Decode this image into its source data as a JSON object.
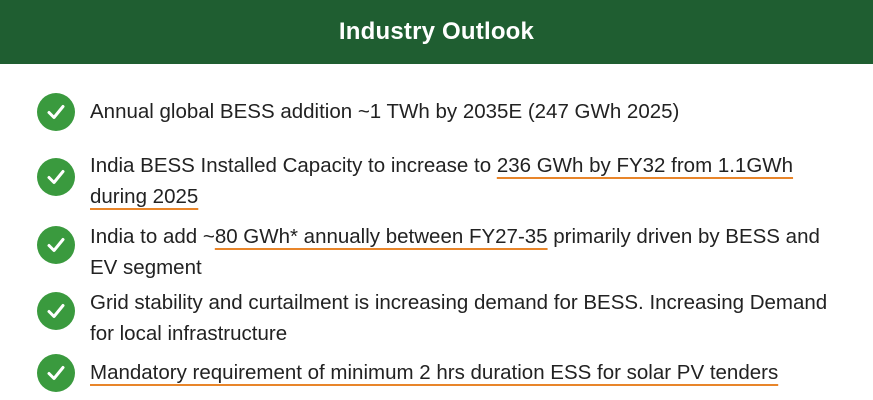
{
  "header": {
    "title": "Industry Outlook",
    "color": "#1f5e31"
  },
  "bullets": [
    {
      "pre": "Annual global BESS addition ~1 TWh by 2035E (247 GWh 2025)",
      "ul": "",
      "post": ""
    },
    {
      "pre": "India BESS Installed Capacity to increase to ",
      "ul": "236 GWh by FY32 from 1.1GWh during 2025",
      "post": ""
    },
    {
      "pre": "India to add ~",
      "ul": "80 GWh* annually between FY27-35",
      "post": " primarily driven by BESS and EV segment"
    },
    {
      "pre": "Grid stability and curtailment is increasing demand for BESS. Increasing Demand for local infrastructure",
      "ul": "",
      "post": ""
    },
    {
      "pre": "",
      "ul": "Mandatory requirement of minimum 2 hrs duration ESS for solar PV tenders",
      "post": ""
    }
  ],
  "colors": {
    "check": "#3a9a3e",
    "underline": "#e8852a"
  },
  "icons": {
    "bullet": "checkmark-icon"
  }
}
